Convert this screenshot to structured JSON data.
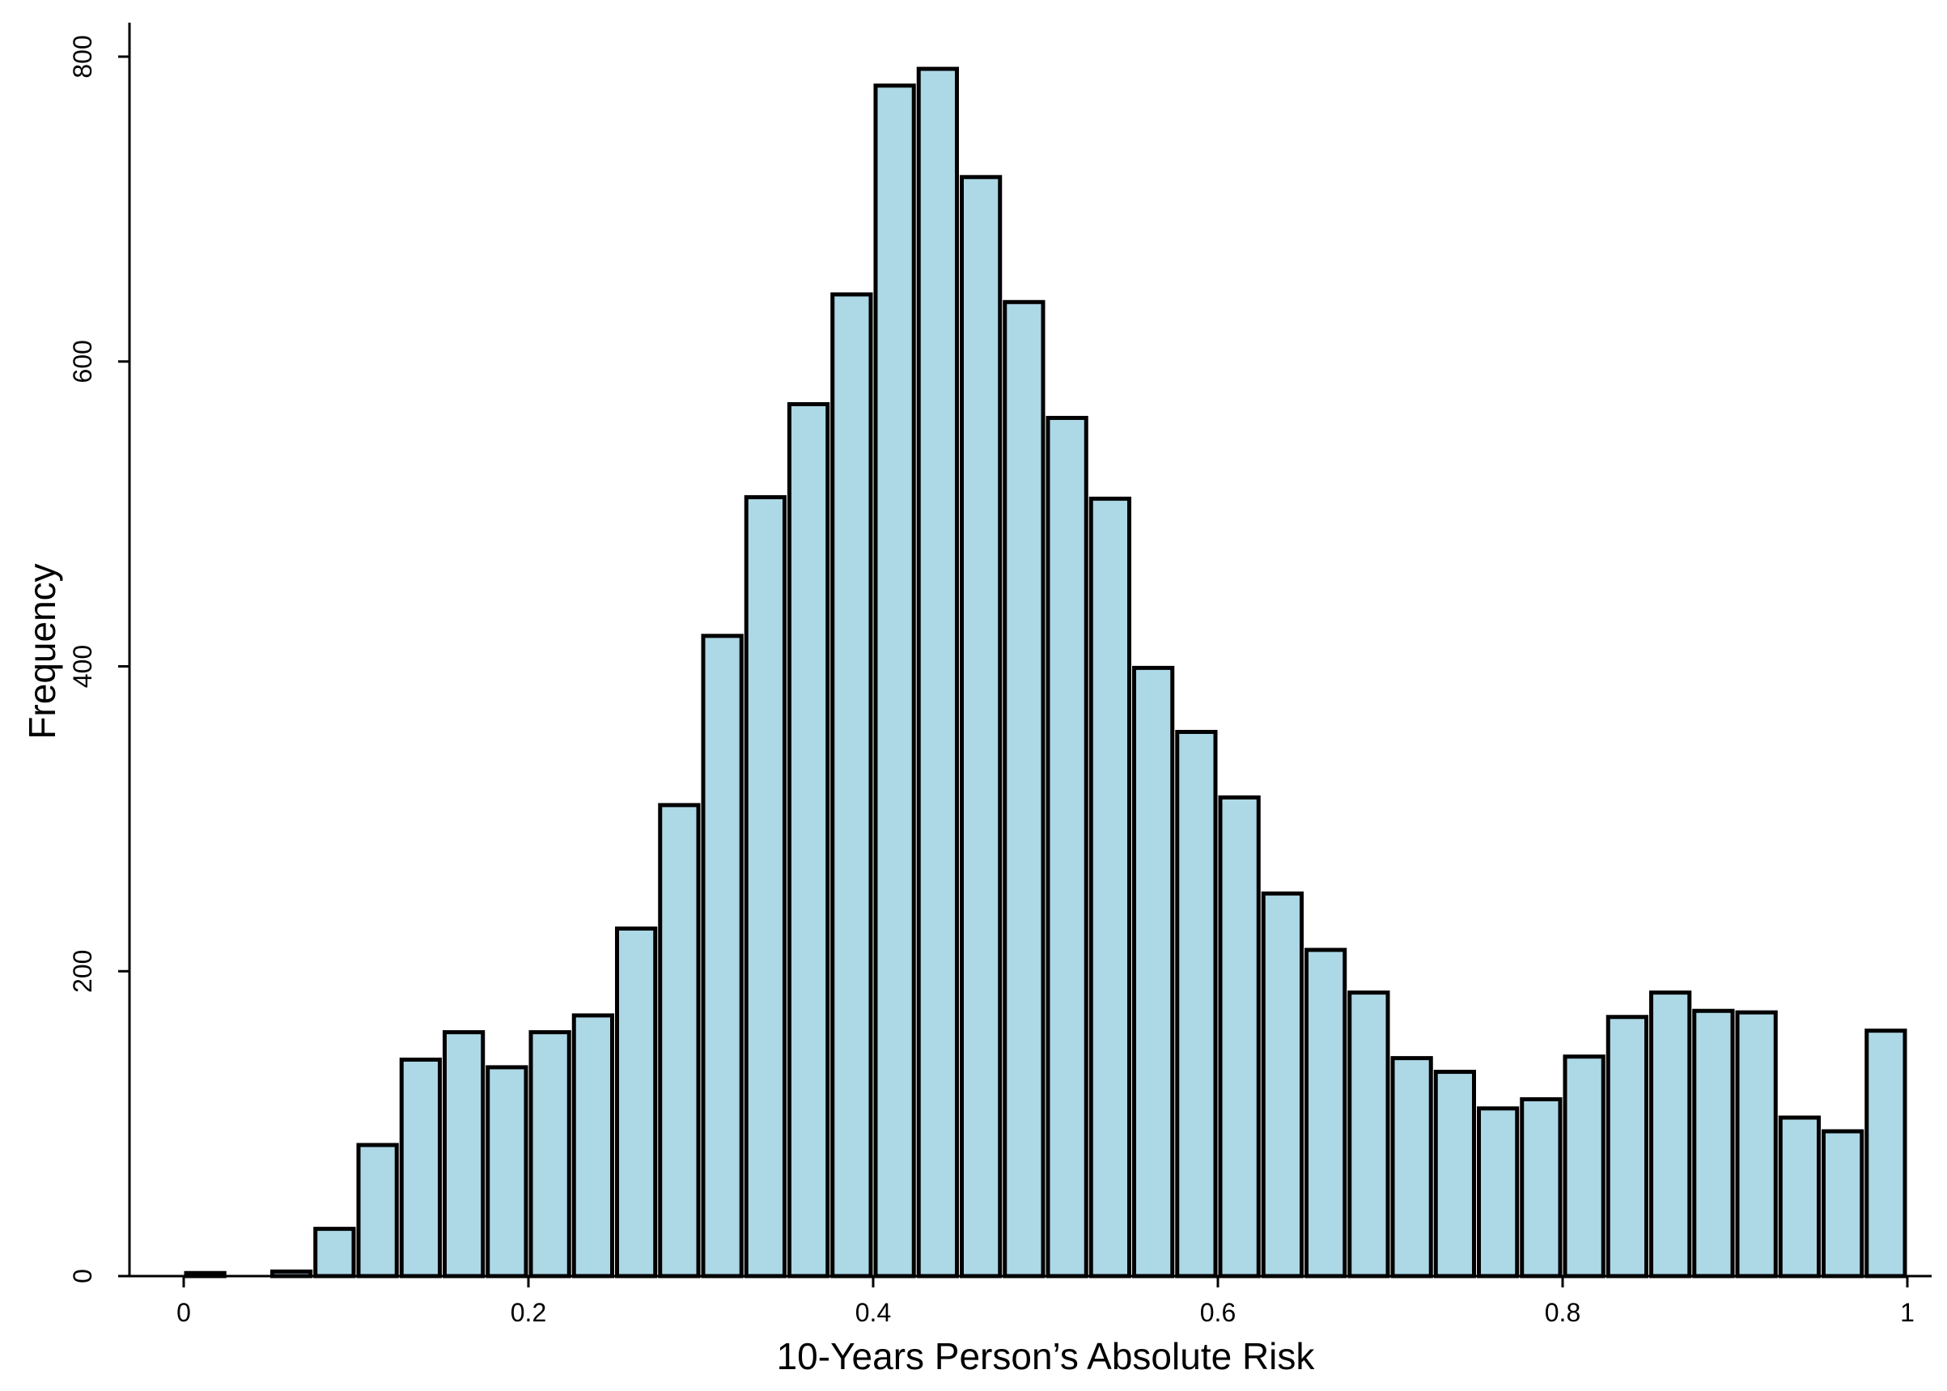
{
  "chart_data": {
    "type": "bar",
    "title": "",
    "xlabel": "10-Years Person’s Absolute Risk",
    "ylabel": "Frequency",
    "xlim": [
      0,
      1
    ],
    "ylim": [
      0,
      800
    ],
    "grid": false,
    "bar_fill": "#add8e6",
    "bar_stroke": "#000000",
    "bin_width": 0.025,
    "bins_start": [
      0,
      0.025,
      0.05,
      0.075,
      0.1,
      0.125,
      0.15,
      0.175,
      0.2,
      0.225,
      0.25,
      0.275,
      0.3,
      0.325,
      0.35,
      0.375,
      0.4,
      0.425,
      0.45,
      0.475,
      0.5,
      0.525,
      0.55,
      0.575,
      0.6,
      0.625,
      0.65,
      0.675,
      0.7,
      0.725,
      0.75,
      0.775,
      0.8,
      0.825,
      0.85,
      0.875,
      0.9,
      0.925,
      0.95,
      0.975
    ],
    "values": [
      2,
      0,
      3,
      31,
      86,
      142,
      160,
      137,
      160,
      171,
      228,
      309,
      420,
      511,
      572,
      644,
      781,
      792,
      721,
      639,
      563,
      510,
      399,
      357,
      314,
      251,
      214,
      186,
      143,
      134,
      110,
      116,
      144,
      170,
      186,
      174,
      173,
      104,
      95,
      161
    ],
    "x_ticks": [
      0,
      0.2,
      0.4,
      0.6,
      0.8,
      1
    ],
    "x_tick_labels": [
      "0",
      "0.2",
      "0.4",
      "0.6",
      "0.8",
      "1"
    ],
    "y_ticks": [
      0,
      200,
      400,
      600,
      800
    ],
    "y_tick_labels": [
      "0",
      "200",
      "400",
      "600",
      "800"
    ]
  }
}
